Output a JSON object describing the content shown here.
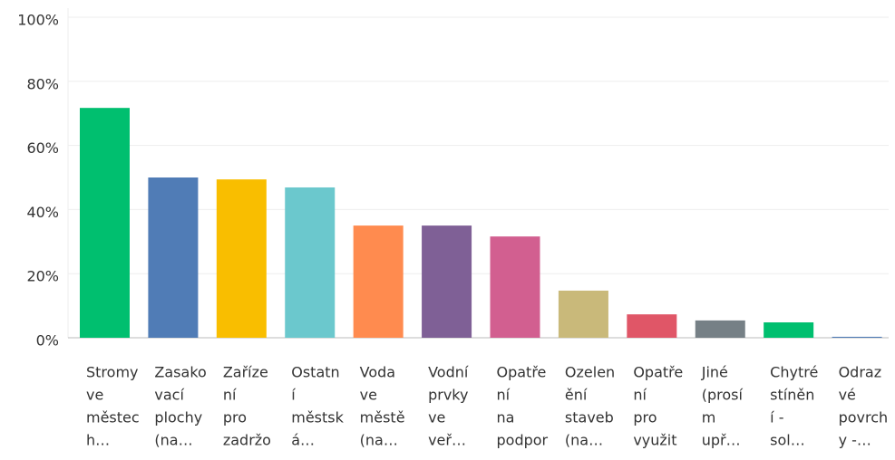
{
  "chart_data": {
    "type": "bar",
    "categories": [
      [
        "Stromy",
        "ve",
        "městec",
        "h…"
      ],
      [
        "Zasako",
        "vací",
        "plochy",
        "(na…"
      ],
      [
        "Zaříze",
        "ní",
        "pro",
        "zadržo"
      ],
      [
        "Ostatn",
        "í",
        "městsk",
        "á…"
      ],
      [
        "Voda",
        "ve",
        "městě",
        "(na…"
      ],
      [
        "Vodní",
        "prvky",
        "ve",
        "veř…"
      ],
      [
        "Opatře",
        "ní",
        "na",
        "podpor"
      ],
      [
        "Ozelen",
        "ění",
        "staveb",
        "(na…"
      ],
      [
        "Opatře",
        "ní",
        "pro",
        "využit"
      ],
      [
        "Jiné",
        "(prosí",
        "m",
        "upř…"
      ],
      [
        "Chytré",
        "stíněn",
        "í -",
        "sol…"
      ],
      [
        "Odraz",
        "vé",
        "povrch",
        "y -…"
      ]
    ],
    "values": [
      71.7,
      50.0,
      49.4,
      46.9,
      35.0,
      35.0,
      31.6,
      14.7,
      7.3,
      5.4,
      4.8,
      0.3
    ],
    "colors": [
      "#00bf6f",
      "#507cb6",
      "#f9be00",
      "#6bc8cd",
      "#ff8b4f",
      "#7f6096",
      "#d25f90",
      "#c9b97a",
      "#e05667",
      "#768086",
      "#00bf6f",
      "#507cb6"
    ],
    "ylim": [
      0,
      100
    ],
    "yticks": [
      {
        "value": 0,
        "label": "0%"
      },
      {
        "value": 20,
        "label": "20%"
      },
      {
        "value": 40,
        "label": "40%"
      },
      {
        "value": 60,
        "label": "60%"
      },
      {
        "value": 80,
        "label": "80%"
      },
      {
        "value": 100,
        "label": "100%"
      }
    ],
    "grid": true
  }
}
